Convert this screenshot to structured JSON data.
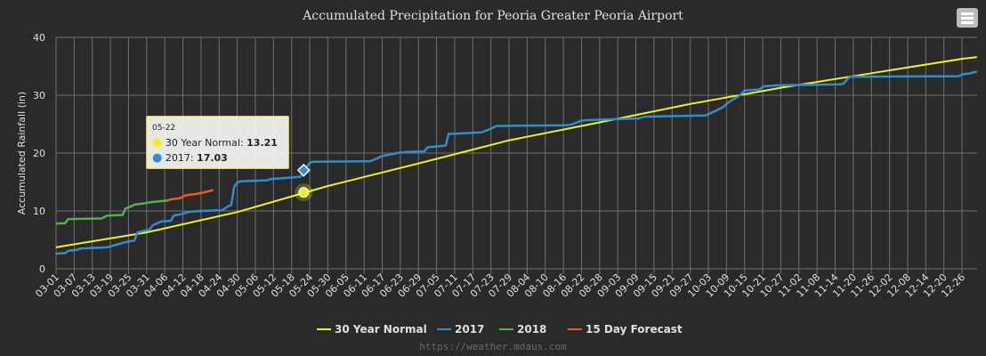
{
  "chart_data": {
    "type": "line",
    "title": "Accumulated Precipitation for Peoria Greater Peoria Airport",
    "ylabel": "Accumulated Rainfall (in)",
    "xlabel": "",
    "ylim": [
      0,
      40
    ],
    "yticks": [
      0,
      10,
      20,
      30,
      40
    ],
    "xticks": [
      "03-01",
      "03-07",
      "03-13",
      "03-19",
      "03-25",
      "03-31",
      "04-06",
      "04-12",
      "04-18",
      "04-24",
      "04-30",
      "05-06",
      "05-12",
      "05-18",
      "05-24",
      "05-30",
      "06-05",
      "06-11",
      "06-17",
      "06-23",
      "06-29",
      "07-05",
      "07-11",
      "07-17",
      "07-23",
      "07-29",
      "08-04",
      "08-10",
      "08-16",
      "08-22",
      "08-28",
      "09-03",
      "09-09",
      "09-15",
      "09-21",
      "09-27",
      "10-03",
      "10-09",
      "10-15",
      "10-21",
      "10-27",
      "11-02",
      "11-08",
      "11-14",
      "11-20",
      "11-26",
      "12-02",
      "12-08",
      "12-14",
      "12-20",
      "12-26"
    ],
    "grid": true,
    "legend_position": "bottom-center",
    "series": [
      {
        "name": "30 Year Normal",
        "color": "#f2f21a",
        "x": [
          "03-01",
          "03-31",
          "04-30",
          "05-30",
          "06-29",
          "07-29",
          "08-28",
          "09-27",
          "10-27",
          "11-26",
          "12-26",
          "12-31"
        ],
        "values": [
          3.7,
          6.3,
          9.8,
          14.3,
          18.2,
          22.2,
          25.3,
          28.5,
          31.3,
          33.8,
          36.3,
          36.6
        ]
      },
      {
        "name": "2017",
        "color": "#2b8fd0",
        "x": [
          "03-01",
          "03-04",
          "03-05",
          "03-08",
          "03-09",
          "03-18",
          "03-24",
          "03-27",
          "03-28",
          "04-01",
          "04-02",
          "04-04",
          "04-05",
          "04-08",
          "04-09",
          "04-12",
          "04-13",
          "04-15",
          "04-18",
          "04-25",
          "04-27",
          "04-28",
          "04-29",
          "04-30",
          "05-01",
          "05-10",
          "05-11",
          "05-21",
          "05-22",
          "05-23",
          "05-24",
          "05-25",
          "06-13",
          "06-15",
          "06-17",
          "06-22",
          "06-25",
          "07-01",
          "07-02",
          "07-08",
          "07-09",
          "07-17",
          "07-20",
          "07-22",
          "07-25",
          "08-17",
          "08-19",
          "08-22",
          "08-24",
          "09-10",
          "09-12",
          "10-02",
          "10-05",
          "10-08",
          "10-10",
          "10-13",
          "10-15",
          "10-20",
          "10-21",
          "10-25",
          "11-16",
          "11-17",
          "11-18",
          "11-19",
          "12-25",
          "12-26",
          "12-29",
          "12-30",
          "12-31"
        ],
        "values": [
          2.6,
          2.7,
          3.1,
          3.3,
          3.5,
          3.7,
          4.6,
          4.9,
          6.3,
          6.8,
          7.5,
          8.0,
          8.2,
          8.3,
          9.2,
          9.5,
          9.7,
          9.9,
          10.0,
          10.1,
          10.8,
          11.0,
          14.2,
          14.9,
          15.1,
          15.3,
          15.5,
          15.9,
          17.03,
          17.6,
          18.3,
          18.5,
          18.6,
          19.0,
          19.5,
          20.0,
          20.2,
          20.3,
          21.0,
          21.3,
          23.3,
          23.5,
          23.6,
          24.0,
          24.7,
          24.8,
          25.0,
          25.6,
          25.7,
          26.0,
          26.3,
          26.5,
          27.2,
          28.0,
          28.9,
          29.8,
          30.8,
          31.0,
          31.5,
          31.7,
          31.9,
          32.1,
          32.8,
          33.2,
          33.3,
          33.6,
          33.8,
          34.0,
          34.0
        ]
      },
      {
        "name": "2018",
        "color": "#4fb34a",
        "x": [
          "03-01",
          "03-04",
          "03-05",
          "03-16",
          "03-18",
          "03-23",
          "03-24",
          "03-25",
          "03-27",
          "03-30",
          "04-01",
          "04-03",
          "04-07"
        ],
        "values": [
          7.8,
          7.9,
          8.6,
          8.7,
          9.2,
          9.3,
          10.4,
          10.6,
          11.1,
          11.3,
          11.5,
          11.6,
          11.8
        ]
      },
      {
        "name": "15 Day Forecast",
        "color": "#f25a1e",
        "x": [
          "04-07",
          "04-08",
          "04-11",
          "04-13",
          "04-16",
          "04-19",
          "04-22"
        ],
        "values": [
          11.8,
          12.0,
          12.2,
          12.7,
          12.9,
          13.2,
          13.6
        ]
      }
    ],
    "tooltip": {
      "date": "05-22",
      "rows": [
        {
          "name": "30 Year Normal",
          "value": "13.21"
        },
        {
          "name": "2017",
          "value": "17.03"
        }
      ]
    },
    "credit": "https://weather.mdaus.com"
  }
}
